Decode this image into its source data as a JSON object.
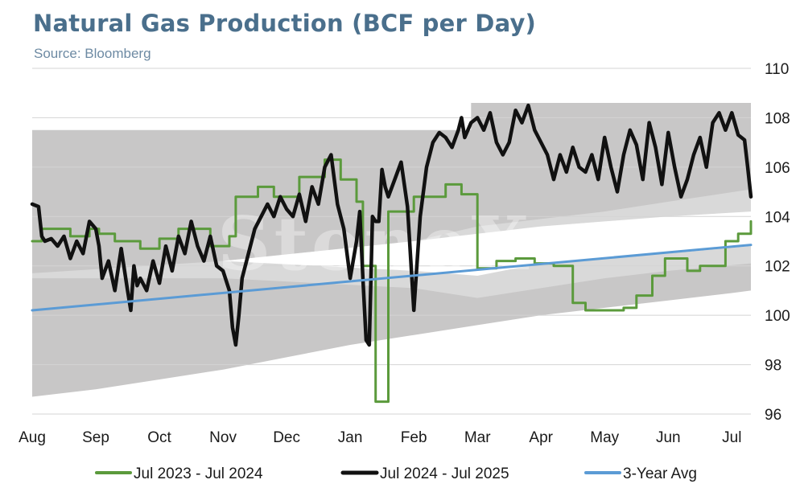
{
  "chart_data": {
    "type": "line",
    "title": "Natural Gas Production (BCF per Day)",
    "subtitle": "Source: Bloomberg",
    "watermark": "StoneX",
    "ylim": [
      96,
      110
    ],
    "yticks": [
      96,
      98,
      100,
      102,
      104,
      106,
      108,
      110
    ],
    "y_axis_side": "right",
    "grid": true,
    "legend_position": "bottom",
    "categories": [
      "Aug",
      "Sep",
      "Oct",
      "Nov",
      "Dec",
      "Jan",
      "Feb",
      "Mar",
      "Apr",
      "May",
      "Jun",
      "Jul"
    ],
    "range_bands": [
      {
        "name": "range-outer",
        "color": "#c8c7c7",
        "lower": [
          [
            0,
            96.7
          ],
          [
            1,
            97.0
          ],
          [
            2,
            97.4
          ],
          [
            3,
            97.8
          ],
          [
            4,
            98.3
          ],
          [
            5,
            98.8
          ],
          [
            6,
            99.2
          ],
          [
            7,
            99.6
          ],
          [
            8,
            100.0
          ],
          [
            9,
            100.3
          ],
          [
            10,
            100.6
          ],
          [
            11,
            100.9
          ],
          [
            11.3,
            101.0
          ]
        ],
        "upper": [
          [
            0,
            107.5
          ],
          [
            6,
            107.5
          ],
          [
            6.9,
            107.5
          ],
          [
            6.9,
            108.6
          ],
          [
            11.3,
            108.6
          ]
        ]
      },
      {
        "name": "range-inner",
        "color": "#d9d9d9",
        "lower": [
          [
            0,
            101.5
          ],
          [
            3,
            101.5
          ],
          [
            6,
            101.1
          ],
          [
            7,
            100.7
          ],
          [
            8,
            101.1
          ],
          [
            9,
            101.5
          ],
          [
            10,
            101.8
          ],
          [
            11.3,
            102.1
          ]
        ],
        "upper": [
          [
            0,
            101.7
          ],
          [
            3,
            102.2
          ],
          [
            6,
            103.0
          ],
          [
            7,
            103.6
          ],
          [
            8,
            103.9
          ],
          [
            9,
            104.2
          ],
          [
            10,
            104.6
          ],
          [
            11.3,
            105.1
          ]
        ]
      },
      {
        "name": "range-core",
        "color": "#ffffff",
        "lower": [
          [
            0,
            101.7
          ],
          [
            3,
            102.2
          ],
          [
            6,
            101.8
          ],
          [
            7,
            101.6
          ],
          [
            8,
            102.1
          ],
          [
            9,
            102.3
          ],
          [
            10,
            102.5
          ],
          [
            11.3,
            102.8
          ]
        ],
        "upper": [
          [
            0,
            101.7
          ],
          [
            3,
            102.2
          ],
          [
            6,
            103.0
          ],
          [
            7,
            103.3
          ],
          [
            8,
            103.6
          ],
          [
            9,
            103.8
          ],
          [
            10,
            104.0
          ],
          [
            11.3,
            104.2
          ]
        ]
      }
    ],
    "series": [
      {
        "name": "Jul 2023 - Jul 2024",
        "color": "#5b9a3c",
        "x": [
          0,
          0.15,
          0.15,
          0.6,
          0.6,
          0.9,
          0.9,
          1.05,
          1.05,
          1.3,
          1.3,
          1.7,
          1.7,
          2.0,
          2.0,
          2.3,
          2.3,
          2.8,
          2.8,
          3.1,
          3.1,
          3.2,
          3.2,
          3.55,
          3.55,
          3.8,
          3.8,
          4.2,
          4.2,
          4.6,
          4.6,
          4.85,
          4.85,
          5.1,
          5.1,
          5.1,
          5.2,
          5.2,
          5.4,
          5.4,
          5.6,
          5.6,
          6.0,
          6.0,
          6.5,
          6.5,
          6.75,
          6.75,
          7.0,
          7.0,
          7.3,
          7.3,
          7.6,
          7.6,
          7.9,
          7.9,
          8.2,
          8.2,
          8.5,
          8.5,
          8.7,
          8.7,
          8.9,
          8.9,
          9.3,
          9.3,
          9.5,
          9.5,
          9.75,
          9.75,
          9.95,
          9.95,
          10.3,
          10.3,
          10.5,
          10.5,
          10.9,
          10.9,
          11.1,
          11.1,
          11.3,
          11.3
        ],
        "values": [
          103.0,
          103.0,
          103.5,
          103.5,
          103.2,
          103.2,
          103.5,
          103.5,
          103.3,
          103.3,
          103.0,
          103.0,
          102.7,
          102.7,
          103.1,
          103.1,
          103.5,
          103.5,
          102.8,
          102.8,
          103.2,
          103.2,
          104.8,
          104.8,
          105.2,
          105.2,
          104.8,
          104.8,
          105.6,
          105.6,
          106.3,
          106.3,
          105.5,
          105.5,
          104.6,
          104.6,
          104.6,
          102.0,
          102.0,
          96.5,
          96.5,
          104.2,
          104.2,
          104.8,
          104.8,
          105.3,
          105.3,
          104.9,
          104.9,
          101.9,
          101.9,
          102.2,
          102.2,
          102.3,
          102.3,
          102.1,
          102.1,
          102.0,
          102.0,
          100.5,
          100.5,
          100.2,
          100.2,
          100.2,
          100.2,
          100.3,
          100.3,
          100.8,
          100.8,
          101.6,
          101.6,
          102.3,
          102.3,
          101.8,
          101.8,
          102.0,
          102.0,
          103.0,
          103.0,
          103.3,
          103.3,
          103.8
        ]
      },
      {
        "name": "Jul 2024 - Jul 2025",
        "color": "#111111",
        "x": [
          0,
          0.1,
          0.15,
          0.2,
          0.3,
          0.4,
          0.5,
          0.6,
          0.7,
          0.8,
          0.9,
          1.0,
          1.05,
          1.1,
          1.2,
          1.3,
          1.4,
          1.5,
          1.55,
          1.6,
          1.65,
          1.7,
          1.8,
          1.9,
          2.0,
          2.1,
          2.2,
          2.3,
          2.4,
          2.5,
          2.6,
          2.7,
          2.8,
          2.9,
          3.0,
          3.1,
          3.15,
          3.2,
          3.25,
          3.3,
          3.4,
          3.5,
          3.6,
          3.7,
          3.8,
          3.9,
          4.0,
          4.1,
          4.2,
          4.3,
          4.4,
          4.5,
          4.6,
          4.7,
          4.8,
          4.9,
          5.0,
          5.1,
          5.15,
          5.2,
          5.25,
          5.3,
          5.35,
          5.4,
          5.45,
          5.5,
          5.55,
          5.6,
          5.7,
          5.8,
          5.9,
          6.0,
          6.1,
          6.2,
          6.3,
          6.4,
          6.5,
          6.6,
          6.7,
          6.75,
          6.8,
          6.9,
          7.0,
          7.1,
          7.2,
          7.3,
          7.4,
          7.5,
          7.6,
          7.7,
          7.8,
          7.9,
          8.0,
          8.1,
          8.2,
          8.3,
          8.4,
          8.5,
          8.6,
          8.7,
          8.8,
          8.9,
          9.0,
          9.1,
          9.2,
          9.3,
          9.4,
          9.5,
          9.6,
          9.7,
          9.8,
          9.9,
          10.0,
          10.1,
          10.2,
          10.3,
          10.4,
          10.5,
          10.6,
          10.7,
          10.8,
          10.9,
          11.0,
          11.1,
          11.2,
          11.25,
          11.3
        ],
        "values": [
          104.5,
          104.4,
          103.2,
          103.0,
          103.1,
          102.8,
          103.2,
          102.3,
          103.0,
          102.5,
          103.8,
          103.5,
          102.8,
          101.5,
          102.2,
          101.0,
          102.7,
          101.0,
          100.2,
          102.0,
          101.2,
          101.5,
          101.0,
          102.2,
          101.3,
          102.8,
          101.8,
          103.2,
          102.5,
          103.8,
          102.8,
          102.2,
          103.2,
          102.0,
          101.8,
          101.0,
          99.5,
          98.8,
          100.0,
          101.5,
          102.5,
          103.5,
          104.0,
          104.5,
          104.0,
          104.8,
          104.3,
          104.0,
          104.9,
          103.8,
          105.2,
          104.5,
          106.0,
          106.5,
          104.5,
          103.5,
          101.5,
          103.0,
          104.2,
          101.5,
          99.0,
          98.8,
          104.0,
          103.8,
          103.8,
          105.9,
          105.2,
          104.8,
          105.5,
          106.2,
          104.4,
          100.2,
          104.0,
          106.0,
          107.0,
          107.4,
          107.2,
          106.8,
          107.5,
          108.0,
          107.2,
          107.8,
          108.0,
          107.5,
          108.2,
          107.0,
          106.5,
          107.0,
          108.3,
          107.8,
          108.5,
          107.5,
          107.0,
          106.5,
          105.5,
          106.5,
          105.8,
          106.8,
          106.0,
          105.8,
          106.5,
          105.5,
          107.2,
          106.0,
          105.0,
          106.5,
          107.5,
          106.9,
          105.5,
          107.8,
          106.8,
          105.3,
          107.4,
          106.0,
          104.8,
          105.5,
          106.5,
          107.2,
          106.0,
          107.8,
          108.2,
          107.5,
          108.2,
          107.3,
          107.1,
          106.0,
          104.8
        ]
      },
      {
        "name": "3-Year Avg",
        "color": "#5b9bd5",
        "x": [
          0,
          11.3
        ],
        "values": [
          100.2,
          102.85
        ]
      }
    ]
  }
}
